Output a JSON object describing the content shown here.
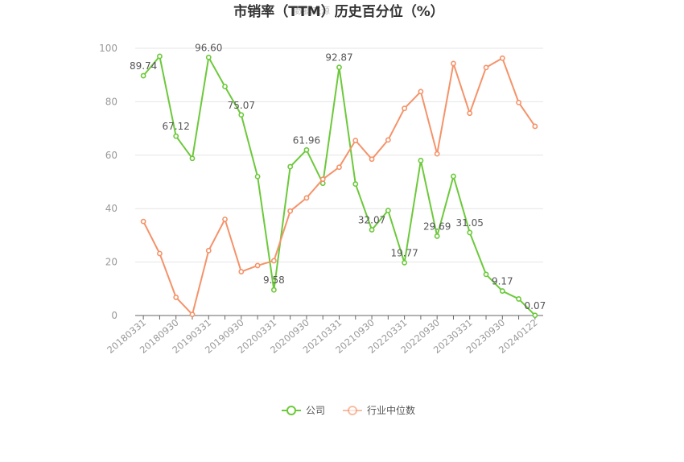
{
  "title": "市销率（TTM）历史百分位（%）",
  "watermark": "数据来源",
  "chart_data": {
    "type": "line",
    "ylim": [
      0,
      100
    ],
    "yticks": [
      0,
      20,
      40,
      60,
      80,
      100
    ],
    "grid": true,
    "legend_position": "bottom",
    "x": [
      "20180331",
      "20180630",
      "20180930",
      "20181231",
      "20190331",
      "20190630",
      "20190930",
      "20191231",
      "20200331",
      "20200630",
      "20200930",
      "20201231",
      "20210331",
      "20210630",
      "20210930",
      "20211231",
      "20220331",
      "20220630",
      "20220930",
      "20221231",
      "20230331",
      "20230630",
      "20230930",
      "20231231",
      "20240122"
    ],
    "xtick_labels": [
      "20180331",
      "20180930",
      "20190331",
      "20190930",
      "20200331",
      "20200930",
      "20210331",
      "20210930",
      "20220331",
      "20220930",
      "20230331",
      "20230930",
      "20240122"
    ],
    "series": [
      {
        "name": "公司",
        "color": "#6cc93b",
        "values": [
          89.74,
          97.0,
          67.12,
          58.8,
          96.6,
          85.7,
          75.07,
          52.0,
          9.58,
          55.7,
          61.96,
          49.5,
          92.87,
          49.2,
          32.07,
          39.3,
          19.77,
          58.0,
          29.69,
          52.1,
          31.05,
          15.4,
          9.17,
          6.2,
          0.07
        ],
        "labels": [
          "89.74",
          "",
          "67.12",
          "",
          "96.60",
          "",
          "75.07",
          "",
          "9.58",
          "",
          "61.96",
          "",
          "92.87",
          "",
          "32.07",
          "",
          "19.77",
          "",
          "29.69",
          "",
          "31.05",
          "",
          "9.17",
          "",
          "0.07"
        ]
      },
      {
        "name": "行业中位数",
        "color": "#f4936a",
        "values": [
          35.2,
          23.2,
          6.8,
          0.4,
          24.3,
          36.0,
          16.4,
          18.7,
          20.5,
          39.1,
          44.0,
          51.0,
          55.5,
          65.5,
          58.5,
          65.7,
          77.5,
          83.8,
          60.5,
          94.3,
          75.7,
          92.8,
          96.3,
          79.7,
          70.8
        ]
      }
    ]
  }
}
